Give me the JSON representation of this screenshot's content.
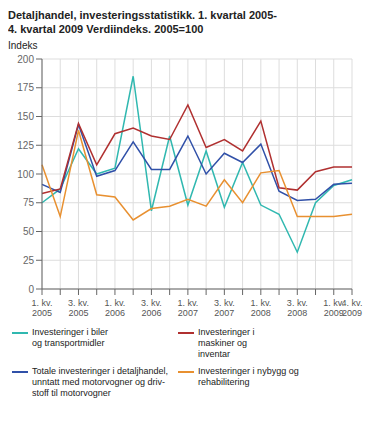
{
  "chart_data": {
    "type": "line",
    "title": "Detaljhandel, investeringsstatistikk. 1. kvartal 2005-\n4. kvartal 2009 Verdiindeks. 2005=100",
    "y_label": "Indeks",
    "categories": [
      "1. kv.\n2005",
      null,
      "3. kv.\n2005",
      null,
      "1. kv.\n2006",
      null,
      "3. kv.\n2006",
      null,
      "1. kv.\n2007",
      null,
      "3. kv.\n2007",
      null,
      "1. kv.\n2008",
      null,
      "3. kv.\n2008",
      null,
      "1. kv.\n2009",
      "4. kv.\n2009"
    ],
    "series": [
      {
        "name": "Investeringer i biler\nog transportmidler",
        "color": "#30b8b0",
        "values": [
          75,
          87,
          122,
          100,
          105,
          185,
          68,
          133,
          73,
          120,
          71,
          110,
          73,
          65,
          32,
          75,
          90,
          95
        ]
      },
      {
        "name": "Totale investeringer i detaljhandel,\nunntatt med motorvogner og driv-\nstoff til motorvogner",
        "color": "#3050a8",
        "values": [
          91,
          84,
          143,
          98,
          103,
          128,
          104,
          104,
          133,
          100,
          118,
          110,
          126,
          85,
          77,
          78,
          91,
          92
        ]
      },
      {
        "name": "Investeringer i\nmaskiner og\ninventar",
        "color": "#b03030",
        "values": [
          83,
          87,
          144,
          108,
          135,
          140,
          133,
          130,
          160,
          123,
          130,
          120,
          146,
          88,
          86,
          102,
          106,
          106
        ]
      },
      {
        "name": "Investeringer i nybygg og\nrehabilitering",
        "color": "#e89030",
        "values": [
          108,
          63,
          138,
          82,
          80,
          60,
          70,
          72,
          78,
          72,
          95,
          75,
          101,
          103,
          63,
          63,
          63,
          65
        ]
      }
    ],
    "ylim": [
      0,
      200
    ],
    "yticks": [
      0,
      25,
      50,
      75,
      100,
      125,
      150,
      175,
      200
    ],
    "grid": true
  }
}
